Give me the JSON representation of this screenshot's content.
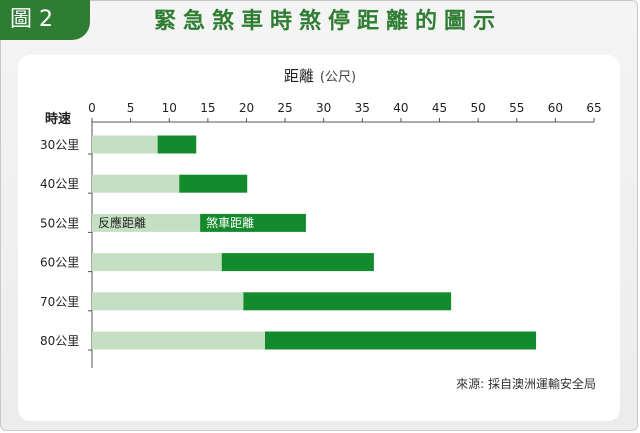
{
  "figure_label": "圖 2",
  "title": "緊急煞車時煞停距離的圖示",
  "source": "來源: 採自澳洲運輸安全局",
  "colors": {
    "brand": "#2e7d32",
    "reaction": "#c5dfc2",
    "braking": "#138a2c"
  },
  "chart_data": {
    "type": "bar",
    "orientation": "horizontal",
    "stacked": true,
    "title": "距離",
    "xlabel": "距離 (公尺)",
    "ylabel": "時速",
    "x_unit": "(公尺)",
    "xlim": [
      0,
      65
    ],
    "xticks": [
      0,
      5,
      10,
      15,
      20,
      25,
      30,
      35,
      40,
      45,
      50,
      55,
      60,
      65
    ],
    "categories": [
      "30公里",
      "40公里",
      "50公里",
      "60公里",
      "70公里",
      "80公里"
    ],
    "series": [
      {
        "name": "反應距離",
        "values": [
          8.5,
          11.3,
          14.0,
          16.8,
          19.6,
          22.4
        ]
      },
      {
        "name": "煞車距離",
        "values": [
          5.0,
          8.8,
          13.7,
          19.7,
          26.9,
          35.1
        ]
      }
    ],
    "inline_labels_row": 2,
    "grid": false
  }
}
